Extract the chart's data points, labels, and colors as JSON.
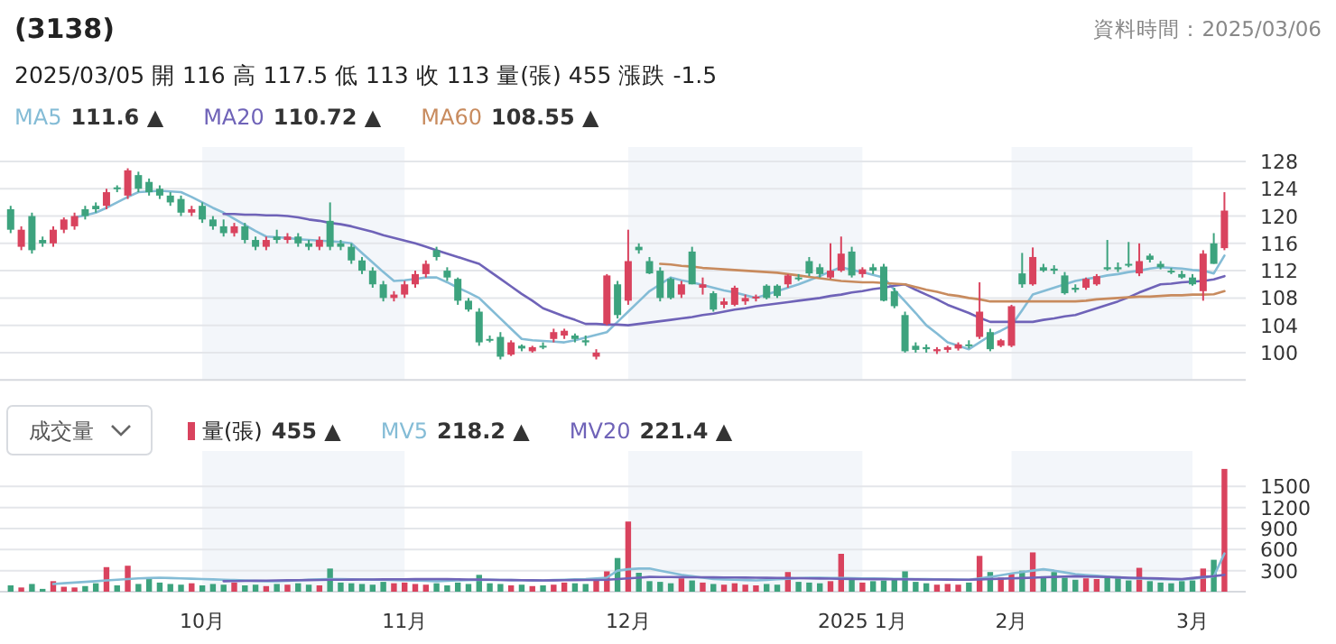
{
  "chart_data": [
    {
      "type": "candlestick",
      "title": "(3138)",
      "annotations": [
        "2025/03/05  開 116  高 117.5  低 113  收 113  量(張) 455  漲跌 -1.5",
        "資料時間：2025/03/06",
        "111.6 ▲",
        "110.72 ▲",
        "108.55 ▲"
      ],
      "categories": [
        null,
        null,
        null,
        null,
        null,
        null,
        null,
        null,
        null,
        null,
        null,
        null,
        null,
        null,
        null,
        null,
        null,
        null,
        null,
        null,
        null,
        null,
        null,
        null,
        null,
        null,
        null,
        null,
        null,
        null,
        null,
        null,
        null,
        null,
        null,
        null,
        null,
        null,
        null,
        null,
        null,
        null,
        null,
        null,
        null,
        null,
        null,
        null,
        null,
        null,
        null,
        null,
        null,
        null,
        null,
        null,
        null,
        null,
        null,
        null,
        null,
        null,
        null,
        null,
        null,
        null,
        null,
        null,
        null,
        null,
        null,
        null,
        null,
        null,
        null,
        null,
        null,
        null,
        null,
        null,
        null,
        null,
        null,
        null,
        null,
        null,
        null,
        null,
        null,
        null,
        null,
        null,
        null,
        null,
        null,
        null,
        null,
        null,
        null,
        null,
        null,
        null,
        null,
        null,
        null,
        null,
        null,
        null,
        null,
        null,
        null,
        null,
        null,
        null,
        null
      ],
      "ohlc": [
        [
          121,
          121.5,
          117.5,
          118
        ],
        [
          115.5,
          118.5,
          115,
          118
        ],
        [
          120,
          120.5,
          114.5,
          115
        ],
        [
          116.5,
          117,
          115.5,
          116
        ],
        [
          116,
          118.5,
          115.5,
          118
        ],
        [
          118,
          119.8,
          117.5,
          119.5
        ],
        [
          118.5,
          120.5,
          118,
          120
        ],
        [
          121,
          121.5,
          119.5,
          120
        ],
        [
          121.5,
          122,
          120.5,
          121
        ],
        [
          121.5,
          124,
          121,
          123.5
        ],
        [
          124.2,
          124.5,
          123.5,
          124
        ],
        [
          123,
          127,
          122.5,
          126.7
        ],
        [
          126,
          126.5,
          123.5,
          124
        ],
        [
          125,
          125.5,
          123,
          123.5
        ],
        [
          124,
          124.5,
          122.5,
          123
        ],
        [
          123,
          123.5,
          121.5,
          122
        ],
        [
          122.5,
          123,
          120,
          120.5
        ],
        [
          120.5,
          121.5,
          120,
          121
        ],
        [
          121.5,
          122,
          119,
          119.5
        ],
        [
          119.5,
          120,
          118,
          118.5
        ],
        [
          118.5,
          119.5,
          117,
          117.5
        ],
        [
          117.5,
          119,
          117,
          118.5
        ],
        [
          118.5,
          119,
          116,
          116.5
        ],
        [
          116.5,
          117,
          115,
          115.5
        ],
        [
          115.5,
          117,
          115,
          116.5
        ],
        [
          117,
          118,
          116,
          116.5
        ],
        [
          116.5,
          117.5,
          116,
          117
        ],
        [
          117,
          117.5,
          115.5,
          116
        ],
        [
          116,
          116.5,
          115,
          115.5
        ],
        [
          115.5,
          117,
          115,
          116.5
        ],
        [
          119.3,
          122,
          115,
          115.5
        ],
        [
          116,
          116.5,
          115,
          115.5
        ],
        [
          115.5,
          116,
          113,
          113.5
        ],
        [
          113.5,
          114,
          111.5,
          112
        ],
        [
          112,
          112.5,
          109.5,
          110
        ],
        [
          110,
          110.5,
          107.5,
          108
        ],
        [
          108,
          109,
          107.5,
          108.5
        ],
        [
          108.5,
          110.5,
          108,
          110
        ],
        [
          110,
          112,
          109.5,
          111.5
        ],
        [
          111.5,
          113.5,
          111,
          113
        ],
        [
          115,
          115.5,
          113.5,
          114
        ],
        [
          112,
          112.5,
          110.5,
          111
        ],
        [
          110.8,
          111,
          107,
          107.6
        ],
        [
          107.6,
          108,
          106,
          106.3
        ],
        [
          106,
          106.5,
          101,
          101.5
        ],
        [
          102,
          102.5,
          101.5,
          101.8
        ],
        [
          102.3,
          103,
          99,
          99.4
        ],
        [
          99.7,
          101.8,
          99.5,
          101.5
        ],
        [
          101,
          101.2,
          100.2,
          100.6
        ],
        [
          100.2,
          101,
          100,
          100.8
        ],
        [
          101,
          101.5,
          100.5,
          101
        ],
        [
          102,
          103.5,
          101.5,
          103
        ],
        [
          102.5,
          103.5,
          102,
          103.2
        ],
        [
          102.5,
          102.8,
          101.5,
          102
        ],
        [
          101.8,
          102.5,
          101,
          101.5
        ],
        [
          99.4,
          100.5,
          99,
          100
        ],
        [
          104.2,
          111.5,
          104,
          111.3
        ],
        [
          110,
          110.5,
          105,
          105.5
        ],
        [
          107.6,
          118,
          107,
          113.4
        ],
        [
          115.5,
          116,
          114.5,
          115
        ],
        [
          113.4,
          114,
          111.5,
          111.6
        ],
        [
          112,
          112.5,
          107.5,
          108
        ],
        [
          110.8,
          111,
          107.8,
          108
        ],
        [
          108.5,
          110.5,
          108,
          110
        ],
        [
          114.8,
          115.5,
          110,
          110
        ],
        [
          109.5,
          111,
          108.5,
          110
        ],
        [
          108.7,
          109,
          106,
          106.3
        ],
        [
          107,
          108,
          106.5,
          107.5
        ],
        [
          107,
          109.8,
          106.8,
          109.5
        ],
        [
          107.5,
          108.5,
          107,
          108
        ],
        [
          108,
          108.5,
          107.5,
          108.2
        ],
        [
          109.8,
          110,
          107.8,
          108
        ],
        [
          109.8,
          110,
          108,
          108.3
        ],
        [
          110,
          111.5,
          109.5,
          111.3
        ],
        [
          111,
          111.5,
          110.5,
          110.8
        ],
        [
          113.4,
          114,
          111.2,
          111.6
        ],
        [
          112.5,
          113,
          111,
          111.5
        ],
        [
          111,
          116,
          110.8,
          112
        ],
        [
          112,
          117,
          111.8,
          114.5
        ],
        [
          114.8,
          115.5,
          111,
          111.3
        ],
        [
          111.5,
          112.5,
          111,
          112.2
        ],
        [
          112.5,
          113,
          111.5,
          112
        ],
        [
          112.6,
          113,
          107.5,
          107.6
        ],
        [
          109,
          109.5,
          106.5,
          106.8
        ],
        [
          105.5,
          106,
          100,
          100.2
        ],
        [
          101,
          101.5,
          100,
          100.4
        ],
        [
          100.8,
          101.2,
          100,
          100.5
        ],
        [
          100.2,
          100.8,
          99.8,
          100.5
        ],
        [
          100.4,
          101,
          100,
          100.8
        ],
        [
          100.6,
          101.5,
          100.3,
          101.2
        ],
        [
          101.2,
          101.8,
          100.6,
          101
        ],
        [
          102.3,
          110.3,
          102,
          106
        ],
        [
          103,
          103.5,
          100.2,
          100.5
        ],
        [
          101,
          102,
          100.8,
          101.8
        ],
        [
          101,
          107,
          100.8,
          106.8
        ],
        [
          111.6,
          114.6,
          109.5,
          110
        ],
        [
          110,
          115.4,
          109.8,
          114
        ],
        [
          112.5,
          113,
          111.8,
          112
        ],
        [
          112.3,
          112.8,
          111.5,
          112
        ],
        [
          111.3,
          111.8,
          108.5,
          108.7
        ],
        [
          109.5,
          110,
          108.8,
          109.2
        ],
        [
          109.5,
          111,
          109.2,
          110.8
        ],
        [
          110,
          111.5,
          109.8,
          111.2
        ],
        [
          112.5,
          116.5,
          112,
          112.2
        ],
        [
          112.5,
          113.2,
          111.8,
          112.2
        ],
        [
          113,
          116.2,
          112.5,
          112.8
        ],
        [
          111.6,
          116,
          111.2,
          113.4
        ],
        [
          114.2,
          114.5,
          113.2,
          113.6
        ],
        [
          113,
          113.4,
          112.2,
          112.5
        ],
        [
          112,
          112.4,
          111.5,
          111.8
        ],
        [
          111.5,
          112,
          110.8,
          111
        ],
        [
          111,
          111.5,
          109.8,
          110
        ],
        [
          109,
          115,
          107.6,
          114.5
        ],
        [
          116,
          117.5,
          113,
          113
        ],
        [
          115.3,
          123.5,
          115,
          120.8
        ]
      ],
      "colors": [
        "#3da37e",
        "#d9435e",
        "#3da37e",
        "#3da37e",
        "#d9435e",
        "#d9435e",
        "#d9435e",
        "#3da37e",
        "#3da37e",
        "#d9435e",
        "#3da37e",
        "#d9435e",
        "#3da37e",
        "#3da37e",
        "#3da37e",
        "#3da37e",
        "#3da37e",
        "#d9435e",
        "#3da37e",
        "#3da37e",
        "#3da37e",
        "#d9435e",
        "#3da37e",
        "#3da37e",
        "#d9435e",
        "#3da37e",
        "#d9435e",
        "#3da37e",
        "#3da37e",
        "#d9435e",
        "#3da37e",
        "#3da37e",
        "#3da37e",
        "#3da37e",
        "#3da37e",
        "#3da37e",
        "#d9435e",
        "#d9435e",
        "#d9435e",
        "#d9435e",
        "#3da37e",
        "#3da37e",
        "#3da37e",
        "#3da37e",
        "#3da37e",
        "#3da37e",
        "#3da37e",
        "#d9435e",
        "#3da37e",
        "#d9435e",
        "#3da37e",
        "#d9435e",
        "#d9435e",
        "#3da37e",
        "#3da37e",
        "#d9435e",
        "#d9435e",
        "#3da37e",
        "#d9435e",
        "#3da37e",
        "#3da37e",
        "#3da37e",
        "#3da37e",
        "#d9435e",
        "#3da37e",
        "#d9435e",
        "#3da37e",
        "#d9435e",
        "#d9435e",
        "#d9435e",
        "#d9435e",
        "#3da37e",
        "#3da37e",
        "#d9435e",
        "#3da37e",
        "#3da37e",
        "#3da37e",
        "#d9435e",
        "#d9435e",
        "#3da37e",
        "#d9435e",
        "#3da37e",
        "#3da37e",
        "#3da37e",
        "#3da37e",
        "#3da37e",
        "#3da37e",
        "#d9435e",
        "#d9435e",
        "#d9435e",
        "#3da37e",
        "#d9435e",
        "#3da37e",
        "#d9435e",
        "#d9435e",
        "#3da37e",
        "#d9435e",
        "#3da37e",
        "#3da37e",
        "#3da37e",
        "#3da37e",
        "#d9435e",
        "#d9435e",
        "#3da37e",
        "#3da37e",
        "#3da37e",
        "#d9435e",
        "#3da37e",
        "#3da37e",
        "#3da37e",
        "#3da37e",
        "#3da37e",
        "#d9435e",
        "#3da37e",
        "#d9435e"
      ],
      "series": [
        {
          "name": "MA5",
          "type": "line",
          "color": "#84bcd6",
          "values": [
            null,
            null,
            null,
            null,
            null,
            null,
            119.8,
            120.1,
            120.5,
            121.2,
            122,
            122.8,
            123.5,
            123.6,
            123.7,
            123.6,
            123.5,
            122.8,
            122,
            121.2,
            120.5,
            119.6,
            118.7,
            117.8,
            117,
            116.9,
            116.8,
            116.6,
            116.5,
            116.4,
            116.3,
            116.2,
            116,
            114.6,
            113.2,
            111.8,
            110.5,
            110.6,
            110.8,
            111,
            111,
            110.3,
            109.5,
            108.8,
            108,
            106.5,
            105,
            103.5,
            102,
            101.8,
            101.7,
            101.6,
            101.5,
            101.8,
            102.2,
            102.6,
            103,
            104.5,
            106,
            107.5,
            109,
            110,
            111,
            110.6,
            110.3,
            109.9,
            109.5,
            109.1,
            108.8,
            108.4,
            108,
            108.5,
            109,
            109.5,
            110,
            110.6,
            111.2,
            111.9,
            112.5,
            112.1,
            111.8,
            111.4,
            111,
            109.2,
            107.5,
            105.8,
            104,
            102.8,
            101.5,
            101,
            100.5,
            101.5,
            102.5,
            103.2,
            104,
            106.2,
            108.5,
            109,
            109.5,
            110,
            110.5,
            110.8,
            111,
            111.3,
            111.5,
            111.8,
            112,
            112.3,
            112.5,
            112.4,
            112.3,
            112.1,
            112,
            111.6,
            114.2
          ]
        },
        {
          "name": "MA20",
          "type": "line",
          "color": "#6f63b8",
          "values": [
            null,
            null,
            null,
            null,
            null,
            null,
            null,
            null,
            null,
            null,
            null,
            null,
            null,
            null,
            null,
            null,
            null,
            null,
            null,
            null,
            120.3,
            120.3,
            120.2,
            120.2,
            120.1,
            120.1,
            120,
            119.8,
            119.5,
            119.3,
            119,
            118.8,
            118.5,
            118.1,
            117.7,
            117.2,
            116.8,
            116.4,
            116,
            115.5,
            115,
            114.5,
            114,
            113.5,
            113,
            111.9,
            110.8,
            109.7,
            108.6,
            107.6,
            106.5,
            105.9,
            105.3,
            104.8,
            104.2,
            104.2,
            104.1,
            104.1,
            104,
            104.2,
            104.4,
            104.6,
            104.8,
            105,
            105.2,
            105.5,
            105.7,
            106,
            106.3,
            106.5,
            106.8,
            107,
            107.2,
            107.4,
            107.6,
            107.8,
            108,
            108.3,
            108.5,
            108.8,
            109,
            109.3,
            109.5,
            109.8,
            110,
            109.2,
            108.5,
            107.8,
            107,
            106.4,
            105.8,
            105.1,
            104.5,
            104.5,
            104.5,
            104.5,
            104.5,
            104.8,
            105,
            105.3,
            105.5,
            106,
            106.5,
            107,
            107.5,
            108.1,
            108.8,
            109.4,
            110,
            110.1,
            110.3,
            110.4,
            110.5,
            110.72,
            111.2
          ]
        },
        {
          "name": "MA60",
          "type": "line",
          "color": "#c88b5e",
          "values": [
            null,
            null,
            null,
            null,
            null,
            null,
            null,
            null,
            null,
            null,
            null,
            null,
            null,
            null,
            null,
            null,
            null,
            null,
            null,
            null,
            null,
            null,
            null,
            null,
            null,
            null,
            null,
            null,
            null,
            null,
            null,
            null,
            null,
            null,
            null,
            null,
            null,
            null,
            null,
            null,
            null,
            null,
            null,
            null,
            null,
            null,
            null,
            null,
            null,
            null,
            null,
            null,
            null,
            null,
            null,
            null,
            null,
            null,
            null,
            null,
            null,
            113,
            112.9,
            112.7,
            112.6,
            112.4,
            112.3,
            112.2,
            112.1,
            112,
            111.9,
            111.8,
            111.7,
            111.5,
            111.3,
            111.1,
            110.9,
            110.7,
            110.5,
            110.4,
            110.3,
            110.3,
            110.2,
            110.1,
            110,
            109.6,
            109.2,
            108.9,
            108.5,
            108.3,
            108,
            107.8,
            107.5,
            107.5,
            107.5,
            107.5,
            107.5,
            107.5,
            107.5,
            107.5,
            107.5,
            107.6,
            107.8,
            107.9,
            108,
            108.1,
            108.2,
            108.2,
            108.3,
            108.4,
            108.4,
            108.5,
            108.5,
            108.55,
            109
          ]
        }
      ],
      "ylim": [
        96,
        128
      ],
      "yticks": [
        100,
        104,
        108,
        112,
        116,
        120,
        124,
        128
      ],
      "tick_labels": "y",
      "grid": "y",
      "legend": "top left"
    },
    {
      "type": "bar",
      "annotations": [
        "成交量",
        "455 ▲",
        "218.2 ▲",
        "221.4 ▲"
      ],
      "categories": [
        null,
        null,
        null,
        null,
        null,
        null,
        null,
        null,
        null,
        null,
        null,
        null,
        null,
        null,
        null,
        null,
        null,
        null,
        "10月",
        null,
        null,
        null,
        null,
        null,
        null,
        null,
        null,
        null,
        null,
        null,
        null,
        null,
        null,
        null,
        null,
        null,
        null,
        "11月",
        null,
        null,
        null,
        null,
        null,
        null,
        null,
        null,
        null,
        null,
        null,
        null,
        null,
        null,
        null,
        null,
        null,
        null,
        null,
        null,
        "12月",
        null,
        null,
        null,
        null,
        null,
        null,
        null,
        null,
        null,
        null,
        null,
        null,
        null,
        null,
        null,
        null,
        null,
        null,
        null,
        null,
        null,
        "2025 1月",
        null,
        null,
        null,
        null,
        null,
        null,
        null,
        null,
        null,
        null,
        null,
        null,
        null,
        "2月",
        null,
        null,
        null,
        null,
        null,
        null,
        null,
        null,
        null,
        null,
        null,
        null,
        null,
        null,
        null,
        null,
        "3月",
        null,
        null,
        null
      ],
      "series": [
        {
          "name": "量(張)",
          "values": [
            90,
            60,
            110,
            40,
            150,
            70,
            60,
            80,
            120,
            350,
            90,
            370,
            110,
            200,
            130,
            110,
            100,
            120,
            90,
            110,
            100,
            130,
            90,
            100,
            80,
            110,
            100,
            120,
            100,
            90,
            330,
            130,
            120,
            110,
            100,
            140,
            120,
            130,
            110,
            100,
            120,
            90,
            130,
            110,
            240,
            120,
            110,
            90,
            100,
            80,
            90,
            100,
            130,
            120,
            110,
            180,
            290,
            480,
            1000,
            270,
            150,
            140,
            120,
            190,
            160,
            130,
            110,
            100,
            120,
            100,
            90,
            110,
            100,
            280,
            140,
            130,
            120,
            150,
            540,
            180,
            130,
            150,
            160,
            170,
            290,
            140,
            120,
            100,
            110,
            100,
            130,
            510,
            280,
            200,
            260,
            300,
            560,
            220,
            280,
            200,
            170,
            190,
            180,
            200,
            220,
            160,
            340,
            150,
            130,
            120,
            150,
            160,
            330,
            455,
            1750
          ],
          "colors": [
            "#3da37e",
            "#d9435e",
            "#3da37e",
            "#3da37e",
            "#d9435e",
            "#d9435e",
            "#d9435e",
            "#3da37e",
            "#3da37e",
            "#d9435e",
            "#3da37e",
            "#d9435e",
            "#3da37e",
            "#3da37e",
            "#3da37e",
            "#3da37e",
            "#3da37e",
            "#d9435e",
            "#3da37e",
            "#3da37e",
            "#3da37e",
            "#d9435e",
            "#3da37e",
            "#3da37e",
            "#d9435e",
            "#3da37e",
            "#d9435e",
            "#3da37e",
            "#3da37e",
            "#d9435e",
            "#3da37e",
            "#3da37e",
            "#3da37e",
            "#3da37e",
            "#3da37e",
            "#3da37e",
            "#d9435e",
            "#d9435e",
            "#d9435e",
            "#d9435e",
            "#3da37e",
            "#3da37e",
            "#3da37e",
            "#3da37e",
            "#3da37e",
            "#3da37e",
            "#3da37e",
            "#d9435e",
            "#3da37e",
            "#d9435e",
            "#3da37e",
            "#d9435e",
            "#d9435e",
            "#3da37e",
            "#3da37e",
            "#d9435e",
            "#d9435e",
            "#3da37e",
            "#d9435e",
            "#3da37e",
            "#3da37e",
            "#3da37e",
            "#3da37e",
            "#d9435e",
            "#3da37e",
            "#d9435e",
            "#3da37e",
            "#d9435e",
            "#d9435e",
            "#d9435e",
            "#d9435e",
            "#3da37e",
            "#3da37e",
            "#d9435e",
            "#3da37e",
            "#3da37e",
            "#3da37e",
            "#d9435e",
            "#d9435e",
            "#3da37e",
            "#d9435e",
            "#3da37e",
            "#3da37e",
            "#3da37e",
            "#3da37e",
            "#3da37e",
            "#3da37e",
            "#d9435e",
            "#d9435e",
            "#d9435e",
            "#3da37e",
            "#d9435e",
            "#3da37e",
            "#d9435e",
            "#d9435e",
            "#3da37e",
            "#d9435e",
            "#3da37e",
            "#3da37e",
            "#3da37e",
            "#3da37e",
            "#d9435e",
            "#d9435e",
            "#3da37e",
            "#3da37e",
            "#3da37e",
            "#d9435e",
            "#3da37e",
            "#3da37e",
            "#3da37e",
            "#3da37e",
            "#3da37e",
            "#d9435e",
            "#3da37e",
            "#d9435e"
          ]
        },
        {
          "name": "MV5",
          "type": "line",
          "color": "#84bcd6",
          "values": [
            null,
            null,
            null,
            null,
            110,
            120,
            130,
            140,
            150,
            160,
            170,
            180,
            190,
            195,
            200,
            195,
            190,
            185,
            180,
            175,
            170,
            165,
            160,
            155,
            150,
            150,
            155,
            160,
            170,
            175,
            180,
            178,
            176,
            174,
            172,
            170,
            166,
            162,
            158,
            154,
            150,
            155,
            160,
            165,
            168,
            170,
            168,
            166,
            164,
            162,
            160,
            165,
            170,
            175,
            180,
            190,
            200,
            300,
            320,
            330,
            330,
            300,
            270,
            240,
            220,
            200,
            180,
            175,
            170,
            165,
            160,
            168,
            176,
            184,
            192,
            200,
            198,
            196,
            194,
            192,
            190,
            188,
            186,
            184,
            182,
            180,
            178,
            176,
            174,
            172,
            170,
            190,
            210,
            235,
            260,
            280,
            300,
            320,
            300,
            275,
            250,
            238,
            226,
            214,
            202,
            190,
            186,
            182,
            178,
            174,
            170,
            185,
            200,
            218.2,
            545
          ]
        },
        {
          "name": "MV20",
          "type": "line",
          "color": "#6f63b8",
          "values": [
            null,
            null,
            null,
            null,
            null,
            null,
            null,
            null,
            null,
            null,
            null,
            null,
            null,
            null,
            null,
            null,
            null,
            null,
            null,
            null,
            150,
            152,
            154,
            156,
            158,
            160,
            162,
            164,
            166,
            168,
            170,
            171,
            172,
            173,
            174,
            175,
            176,
            177,
            178,
            179,
            180,
            178,
            176,
            174,
            172,
            170,
            168,
            166,
            164,
            162,
            160,
            162,
            163,
            165,
            167,
            168,
            170,
            180,
            190,
            200,
            210,
            209,
            208,
            207,
            206,
            205,
            204,
            203,
            202,
            201,
            200,
            198,
            196,
            194,
            192,
            190,
            188,
            186,
            184,
            182,
            180,
            179,
            178,
            177,
            176,
            175,
            174,
            173,
            172,
            171,
            170,
            175,
            180,
            185,
            190,
            195,
            200,
            205,
            210,
            215,
            220,
            216,
            212,
            208,
            204,
            200,
            196,
            192,
            188,
            184,
            180,
            195,
            210,
            221.4,
            240
          ]
        }
      ],
      "ylim": [
        0,
        1800
      ],
      "yticks": [
        300,
        600,
        900,
        1200,
        1500
      ],
      "grid": "y",
      "legend": "top left"
    }
  ]
}
